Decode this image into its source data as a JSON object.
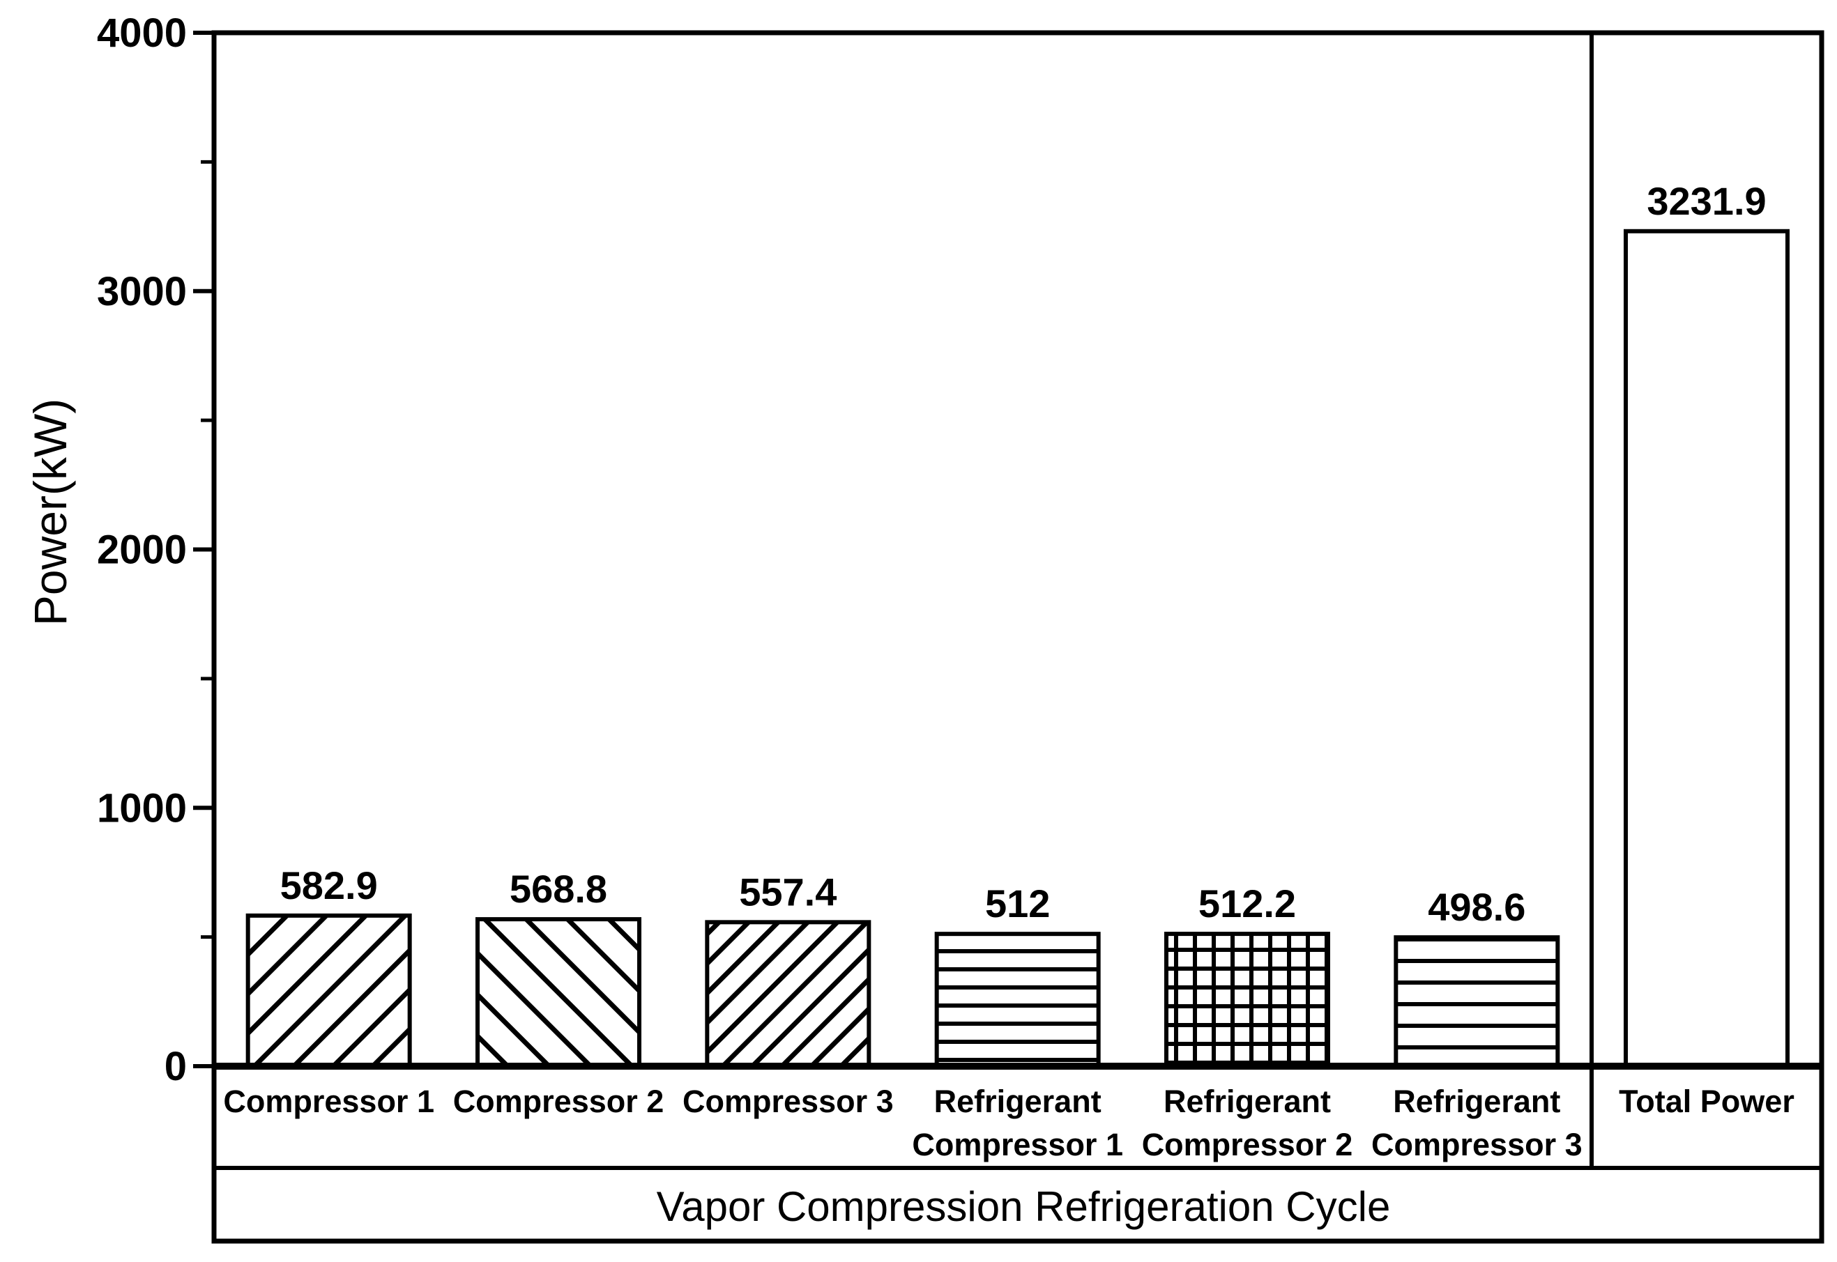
{
  "figure": {
    "background_color": "#ffffff",
    "ink_color": "#000000"
  },
  "chart_data": {
    "type": "bar",
    "title": "",
    "xlabel": "",
    "ylabel": "Power(kW)",
    "ylim": [
      0,
      4000
    ],
    "y_major_ticks": [
      0,
      1000,
      2000,
      3000,
      4000
    ],
    "y_minor_step": 500,
    "grid": false,
    "legend": "none",
    "groups": [
      {
        "label": "Vapor Compression Refrigeration Cycle",
        "bars": [
          {
            "category": "Compressor 1",
            "value": 582.9,
            "label": "582.9",
            "hatch": "diagonal-up"
          },
          {
            "category": "Compressor 2",
            "value": 568.8,
            "label": "568.8",
            "hatch": "diagonal-down"
          },
          {
            "category": "Compressor 3",
            "value": 557.4,
            "label": "557.4",
            "hatch": "diagonal-up-dense"
          },
          {
            "category": "Refrigerant\nCompressor 1",
            "value": 512,
            "label": "512",
            "hatch": "horizontal"
          },
          {
            "category": "Refrigerant\nCompressor 2",
            "value": 512.2,
            "label": "512.2",
            "hatch": "grid"
          },
          {
            "category": "Refrigerant\nCompressor 3",
            "value": 498.6,
            "label": "498.6",
            "hatch": "horizontal-wide"
          }
        ]
      },
      {
        "label": "",
        "bars": [
          {
            "category": "Total Power",
            "value": 3231.9,
            "label": "3231.9",
            "hatch": "none"
          }
        ]
      }
    ]
  }
}
